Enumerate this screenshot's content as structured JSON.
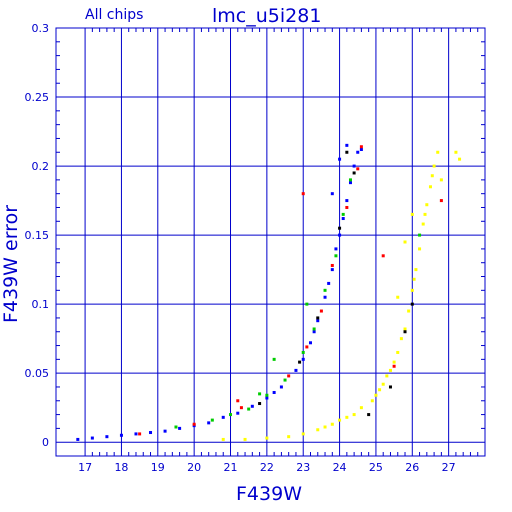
{
  "chart_data": {
    "type": "scatter",
    "title": "lmc_u5i281",
    "subtitle": "All chips",
    "xlabel": "F439W",
    "ylabel": "F439W error",
    "xlim": [
      16.2,
      28.0
    ],
    "ylim": [
      -0.01,
      0.3
    ],
    "xticks": [
      17,
      18,
      19,
      20,
      21,
      22,
      23,
      24,
      25,
      26,
      27
    ],
    "yticks": [
      0,
      0.05,
      0.1,
      0.15,
      0.2,
      0.25,
      0.3
    ],
    "ytick_labels": [
      "0",
      "0.05",
      "0.1",
      "0.15",
      "0.2",
      "0.25",
      "0.3"
    ],
    "grid": true,
    "colors": {
      "axes": "#0000cc",
      "grid": "#0000cc",
      "text": "#0000cc",
      "main_sequence": [
        "#0000ff",
        "#00cc00",
        "#ff0000",
        "#000000"
      ],
      "secondary_sequence": "#ffff00"
    },
    "series": [
      {
        "color": "#0000ff",
        "points": [
          [
            16.8,
            0.002
          ],
          [
            17.2,
            0.003
          ],
          [
            17.6,
            0.004
          ],
          [
            18.0,
            0.005
          ],
          [
            18.4,
            0.006
          ],
          [
            18.8,
            0.007
          ],
          [
            19.2,
            0.008
          ],
          [
            19.6,
            0.01
          ],
          [
            20.0,
            0.012
          ],
          [
            20.4,
            0.014
          ],
          [
            20.8,
            0.018
          ],
          [
            21.2,
            0.021
          ],
          [
            21.6,
            0.026
          ],
          [
            22.0,
            0.032
          ],
          [
            22.4,
            0.04
          ],
          [
            22.8,
            0.052
          ],
          [
            23.0,
            0.06
          ],
          [
            23.2,
            0.072
          ],
          [
            23.4,
            0.088
          ],
          [
            23.6,
            0.105
          ],
          [
            23.8,
            0.125
          ],
          [
            24.0,
            0.15
          ],
          [
            24.2,
            0.175
          ],
          [
            24.4,
            0.2
          ],
          [
            24.6,
            0.212
          ],
          [
            22.2,
            0.036
          ],
          [
            23.3,
            0.08
          ],
          [
            23.7,
            0.115
          ],
          [
            23.9,
            0.14
          ],
          [
            24.1,
            0.162
          ],
          [
            24.3,
            0.188
          ],
          [
            24.5,
            0.21
          ],
          [
            24.0,
            0.205
          ],
          [
            23.8,
            0.18
          ],
          [
            24.2,
            0.215
          ]
        ]
      },
      {
        "color": "#00cc00",
        "points": [
          [
            19.5,
            0.011
          ],
          [
            20.5,
            0.016
          ],
          [
            21.0,
            0.02
          ],
          [
            21.5,
            0.024
          ],
          [
            22.0,
            0.034
          ],
          [
            22.5,
            0.045
          ],
          [
            23.0,
            0.065
          ],
          [
            23.3,
            0.082
          ],
          [
            23.6,
            0.11
          ],
          [
            23.9,
            0.135
          ],
          [
            24.1,
            0.165
          ],
          [
            24.3,
            0.19
          ],
          [
            22.2,
            0.06
          ],
          [
            23.1,
            0.1
          ],
          [
            21.8,
            0.035
          ],
          [
            26.2,
            0.15
          ]
        ]
      },
      {
        "color": "#ff0000",
        "points": [
          [
            18.5,
            0.006
          ],
          [
            20.0,
            0.013
          ],
          [
            21.3,
            0.025
          ],
          [
            22.6,
            0.048
          ],
          [
            23.1,
            0.069
          ],
          [
            23.5,
            0.095
          ],
          [
            23.8,
            0.128
          ],
          [
            24.2,
            0.17
          ],
          [
            24.5,
            0.198
          ],
          [
            24.6,
            0.214
          ],
          [
            21.2,
            0.03
          ],
          [
            23.0,
            0.18
          ],
          [
            25.2,
            0.135
          ],
          [
            25.5,
            0.055
          ],
          [
            26.8,
            0.175
          ]
        ]
      },
      {
        "color": "#000000",
        "points": [
          [
            21.8,
            0.028
          ],
          [
            22.9,
            0.058
          ],
          [
            23.4,
            0.09
          ],
          [
            24.0,
            0.155
          ],
          [
            24.4,
            0.195
          ],
          [
            24.2,
            0.21
          ],
          [
            25.4,
            0.04
          ],
          [
            25.8,
            0.08
          ],
          [
            24.8,
            0.02
          ],
          [
            26.0,
            0.1
          ]
        ]
      },
      {
        "color": "#ffff00",
        "points": [
          [
            20.8,
            0.002
          ],
          [
            21.4,
            0.002
          ],
          [
            22.0,
            0.003
          ],
          [
            22.6,
            0.004
          ],
          [
            23.0,
            0.006
          ],
          [
            23.4,
            0.009
          ],
          [
            23.8,
            0.013
          ],
          [
            24.2,
            0.018
          ],
          [
            24.6,
            0.025
          ],
          [
            25.0,
            0.034
          ],
          [
            25.2,
            0.042
          ],
          [
            25.4,
            0.052
          ],
          [
            25.6,
            0.065
          ],
          [
            25.8,
            0.082
          ],
          [
            25.9,
            0.095
          ],
          [
            26.0,
            0.11
          ],
          [
            26.1,
            0.125
          ],
          [
            26.2,
            0.14
          ],
          [
            26.3,
            0.158
          ],
          [
            26.4,
            0.172
          ],
          [
            26.5,
            0.185
          ],
          [
            26.6,
            0.2
          ],
          [
            26.7,
            0.21
          ],
          [
            27.2,
            0.21
          ],
          [
            27.3,
            0.205
          ],
          [
            24.4,
            0.02
          ],
          [
            24.9,
            0.03
          ],
          [
            25.3,
            0.048
          ],
          [
            25.7,
            0.075
          ],
          [
            26.05,
            0.118
          ],
          [
            26.35,
            0.165
          ],
          [
            26.55,
            0.193
          ],
          [
            23.6,
            0.011
          ],
          [
            24.0,
            0.016
          ],
          [
            25.1,
            0.038
          ],
          [
            25.5,
            0.058
          ],
          [
            26.8,
            0.19
          ],
          [
            26.0,
            0.165
          ],
          [
            25.6,
            0.105
          ],
          [
            25.8,
            0.145
          ]
        ]
      }
    ]
  }
}
